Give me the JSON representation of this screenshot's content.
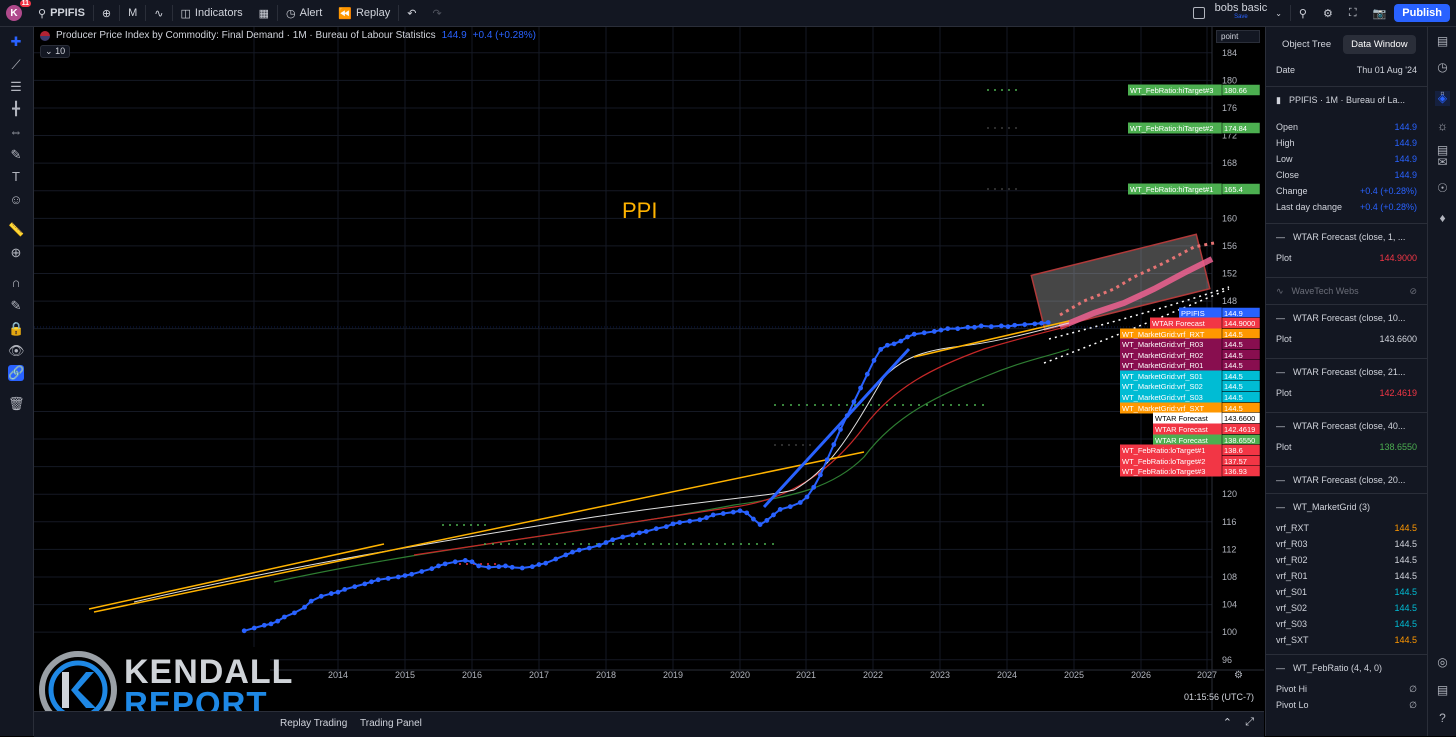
{
  "topbar": {
    "avatar_letter": "K",
    "avatar_badge": "11",
    "symbol": "PPIFIS",
    "interval": "M",
    "indicators_label": "Indicators",
    "alert_label": "Alert",
    "replay_label": "Replay",
    "layout_name": "bobs basic",
    "layout_status": "Save",
    "publish_label": "Publish"
  },
  "legend": {
    "title": "Producer Price Index by Commodity: Final Demand · 1M · Bureau of Labour Statistics",
    "value": "144.9",
    "change": "+0.4 (+0.28%)",
    "indicator_count": "10",
    "scale_mode": "point"
  },
  "annotation": {
    "text": "PPI"
  },
  "chart_data": {
    "type": "line",
    "title": "Producer Price Index by Commodity: Final Demand · 1M · Bureau of Labour Statistics",
    "x_ticks": [
      "13",
      "2014",
      "2015",
      "2016",
      "2017",
      "2018",
      "2019",
      "2020",
      "2021",
      "2022",
      "2023",
      "2024",
      "2025",
      "2026",
      "2027"
    ],
    "y_ticks": [
      96,
      100,
      104,
      108,
      112,
      116,
      120,
      124,
      128,
      132,
      136,
      140,
      144,
      148,
      152,
      156,
      160,
      164,
      168,
      172,
      176,
      180,
      184
    ],
    "ylim": [
      93.5,
      186
    ],
    "series": [
      {
        "name": "PPIFIS",
        "color": "#2962ff",
        "x": [
          2012.6,
          2012.75,
          2012.9,
          2013.0,
          2013.1,
          2013.2,
          2013.35,
          2013.5,
          2013.6,
          2013.75,
          2013.9,
          2014.0,
          2014.1,
          2014.25,
          2014.4,
          2014.5,
          2014.6,
          2014.75,
          2014.9,
          2015.0,
          2015.1,
          2015.25,
          2015.4,
          2015.5,
          2015.6,
          2015.75,
          2015.9,
          2016.0,
          2016.1,
          2016.25,
          2016.4,
          2016.5,
          2016.6,
          2016.75,
          2016.9,
          2017.0,
          2017.1,
          2017.25,
          2017.4,
          2017.5,
          2017.6,
          2017.75,
          2017.9,
          2018.0,
          2018.1,
          2018.25,
          2018.4,
          2018.5,
          2018.6,
          2018.75,
          2018.9,
          2019.0,
          2019.1,
          2019.25,
          2019.4,
          2019.5,
          2019.6,
          2019.75,
          2019.9,
          2020.0,
          2020.1,
          2020.2,
          2020.3,
          2020.4,
          2020.5,
          2020.6,
          2020.75,
          2020.9,
          2021.0,
          2021.1,
          2021.2,
          2021.3,
          2021.4,
          2021.5,
          2021.6,
          2021.7,
          2021.8,
          2021.9,
          2022.0,
          2022.1,
          2022.2,
          2022.3,
          2022.4,
          2022.5,
          2022.6,
          2022.75,
          2022.9,
          2023.0,
          2023.1,
          2023.25,
          2023.4,
          2023.5,
          2023.6,
          2023.75,
          2023.9,
          2024.0,
          2024.1,
          2024.25,
          2024.4,
          2024.5,
          2024.6
        ],
        "y": [
          100.2,
          100.6,
          101.0,
          101.2,
          101.6,
          102.2,
          102.8,
          103.6,
          104.5,
          105.2,
          105.6,
          105.8,
          106.2,
          106.6,
          107.0,
          107.3,
          107.6,
          107.8,
          108.0,
          108.2,
          108.4,
          108.8,
          109.2,
          109.6,
          109.9,
          110.2,
          110.4,
          110.2,
          109.6,
          109.4,
          109.5,
          109.6,
          109.4,
          109.3,
          109.5,
          109.8,
          110.0,
          110.6,
          111.2,
          111.6,
          111.9,
          112.2,
          112.6,
          113.0,
          113.4,
          113.8,
          114.1,
          114.4,
          114.6,
          115.0,
          115.3,
          115.7,
          115.9,
          116.1,
          116.3,
          116.6,
          117.0,
          117.2,
          117.4,
          117.6,
          117.3,
          116.4,
          115.6,
          116.2,
          117.0,
          117.8,
          118.2,
          118.8,
          119.6,
          121.0,
          122.8,
          125.0,
          127.2,
          129.4,
          131.4,
          133.4,
          135.4,
          137.4,
          139.4,
          141.0,
          141.6,
          141.8,
          142.2,
          142.8,
          143.2,
          143.4,
          143.6,
          143.8,
          144.0,
          144.0,
          144.2,
          144.2,
          144.4,
          144.3,
          144.4,
          144.3,
          144.5,
          144.6,
          144.7,
          144.8,
          144.9
        ]
      }
    ],
    "price_axis_labels": [
      {
        "label": "WT_FebRatio:hiTarget#3",
        "value": "180.66",
        "color": "#4caf50"
      },
      {
        "label": "WT_FebRatio:hiTarget#2",
        "value": "174.84",
        "color": "#4caf50"
      },
      {
        "label": "WT_FebRatio:hiTarget#1",
        "value": "165.4",
        "color": "#4caf50"
      },
      {
        "label": "PPIFIS",
        "value": "144.9",
        "color": "#2962ff"
      },
      {
        "label": "WTAR Forecast",
        "value": "144.9000",
        "color": "#f23645"
      },
      {
        "label": "WT_MarketGrid:vrf_RXT",
        "value": "144.5",
        "color": "#ff9800"
      },
      {
        "label": "WT_MarketGrid:vrf_R03",
        "value": "144.5",
        "color": "#880e4f"
      },
      {
        "label": "WT_MarketGrid:vrf_R02",
        "value": "144.5",
        "color": "#880e4f"
      },
      {
        "label": "WT_MarketGrid:vrf_R01",
        "value": "144.5",
        "color": "#880e4f"
      },
      {
        "label": "WT_MarketGrid:vrf_S01",
        "value": "144.5",
        "color": "#00bcd4"
      },
      {
        "label": "WT_MarketGrid:vrf_S02",
        "value": "144.5",
        "color": "#00bcd4"
      },
      {
        "label": "WT_MarketGrid:vrf_S03",
        "value": "144.5",
        "color": "#00bcd4"
      },
      {
        "label": "WT_MarketGrid:vrf_SXT",
        "value": "144.5",
        "color": "#ff9800"
      },
      {
        "label": "WTAR Forecast",
        "value": "143.6600",
        "color": "#ffffff"
      },
      {
        "label": "WTAR Forecast",
        "value": "142.4619",
        "color": "#f23645"
      },
      {
        "label": "WTAR Forecast",
        "value": "138.6550",
        "color": "#4caf50"
      },
      {
        "label": "WT_FebRatio:loTarget#1",
        "value": "138.6",
        "color": "#f23645"
      },
      {
        "label": "WT_FebRatio:loTarget#2",
        "value": "137.57",
        "color": "#f23645"
      },
      {
        "label": "WT_FebRatio:loTarget#3",
        "value": "136.93",
        "color": "#f23645"
      }
    ]
  },
  "timestamp": "01:15:56 (UTC-7)",
  "logo": {
    "line1": "KENDALL",
    "line2": "REPORT"
  },
  "bottom": {
    "tab1": "Replay Trading",
    "tab2": "Trading Panel"
  },
  "data_window": {
    "tab_object_tree": "Object Tree",
    "tab_data_window": "Data Window",
    "date_label": "Date",
    "date_value": "Thu 01 Aug '24",
    "symbol_header": "PPIFIS · 1M · Bureau of La...",
    "ohlc": [
      {
        "label": "Open",
        "value": "144.9",
        "color": "#2962ff"
      },
      {
        "label": "High",
        "value": "144.9",
        "color": "#2962ff"
      },
      {
        "label": "Low",
        "value": "144.9",
        "color": "#2962ff"
      },
      {
        "label": "Close",
        "value": "144.9",
        "color": "#2962ff"
      },
      {
        "label": "Change",
        "value": "+0.4 (+0.28%)",
        "color": "#2962ff"
      },
      {
        "label": "Last day change",
        "value": "+0.4 (+0.28%)",
        "color": "#2962ff"
      }
    ],
    "sections": [
      {
        "header": "WTAR Forecast (close, 1, ...",
        "plot_label": "Plot",
        "plot_value": "144.9000",
        "color": "#f23645"
      },
      {
        "header": "WaveTech Webs",
        "dim": true
      },
      {
        "header": "WTAR Forecast (close, 10...",
        "plot_label": "Plot",
        "plot_value": "143.6600",
        "color": "#d1d4dc"
      },
      {
        "header": "WTAR Forecast (close, 21...",
        "plot_label": "Plot",
        "plot_value": "142.4619",
        "color": "#f23645"
      },
      {
        "header": "WTAR Forecast (close, 40...",
        "plot_label": "Plot",
        "plot_value": "138.6550",
        "color": "#4caf50"
      },
      {
        "header": "WTAR Forecast (close, 20..."
      }
    ],
    "market_grid_header": "WT_MarketGrid (3)",
    "market_grid": [
      {
        "label": "vrf_RXT",
        "value": "144.5",
        "color": "#ff9800"
      },
      {
        "label": "vrf_R03",
        "value": "144.5",
        "color": "#d1d4dc"
      },
      {
        "label": "vrf_R02",
        "value": "144.5",
        "color": "#d1d4dc"
      },
      {
        "label": "vrf_R01",
        "value": "144.5",
        "color": "#d1d4dc"
      },
      {
        "label": "vrf_S01",
        "value": "144.5",
        "color": "#00bcd4"
      },
      {
        "label": "vrf_S02",
        "value": "144.5",
        "color": "#00bcd4"
      },
      {
        "label": "vrf_S03",
        "value": "144.5",
        "color": "#00bcd4"
      },
      {
        "label": "vrf_SXT",
        "value": "144.5",
        "color": "#ff9800"
      }
    ],
    "feb_ratio_header": "WT_FebRatio (4, 4, 0)",
    "feb_ratio": [
      {
        "label": "Pivot Hi",
        "value": "∅"
      },
      {
        "label": "Pivot Lo",
        "value": "∅"
      }
    ]
  }
}
